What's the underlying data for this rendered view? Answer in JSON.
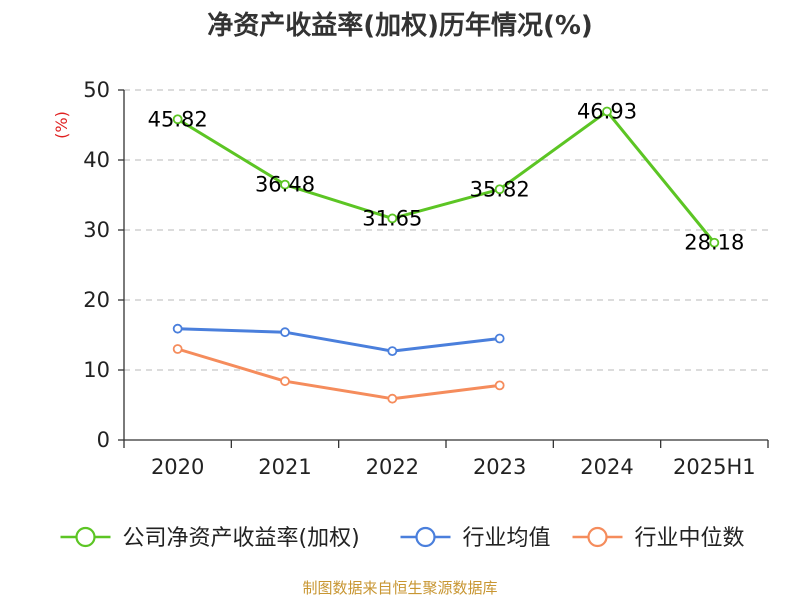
{
  "chart_data": {
    "type": "line",
    "title": "净资产收益率(加权)历年情况(%)",
    "ylabel": "(%)",
    "categories": [
      "2020",
      "2021",
      "2022",
      "2023",
      "2024",
      "2025H1"
    ],
    "ylim": [
      0,
      50
    ],
    "yticks": [
      0,
      10,
      20,
      30,
      40,
      50
    ],
    "grid": true,
    "legend_position": "bottom",
    "series": [
      {
        "name": "公司净资产收益率(加权)",
        "color": "#5cc524",
        "values": [
          45.82,
          36.48,
          31.65,
          35.82,
          46.93,
          28.18
        ],
        "data_labels": [
          "45.82",
          "36.48",
          "31.65",
          "35.82",
          "46.93",
          "28.18"
        ]
      },
      {
        "name": "行业均值",
        "color": "#4a7fdc",
        "values": [
          15.9,
          15.4,
          12.7,
          14.5,
          null,
          null
        ]
      },
      {
        "name": "行业中位数",
        "color": "#f58c5c",
        "values": [
          13.0,
          8.4,
          5.9,
          7.8,
          null,
          null
        ]
      }
    ]
  },
  "footer": {
    "source": "制图数据来自恒生聚源数据库",
    "color": "#c89632"
  },
  "colors": {
    "axis": "#333333",
    "grid": "#c8c8c8",
    "unit_label": "#e02020"
  }
}
